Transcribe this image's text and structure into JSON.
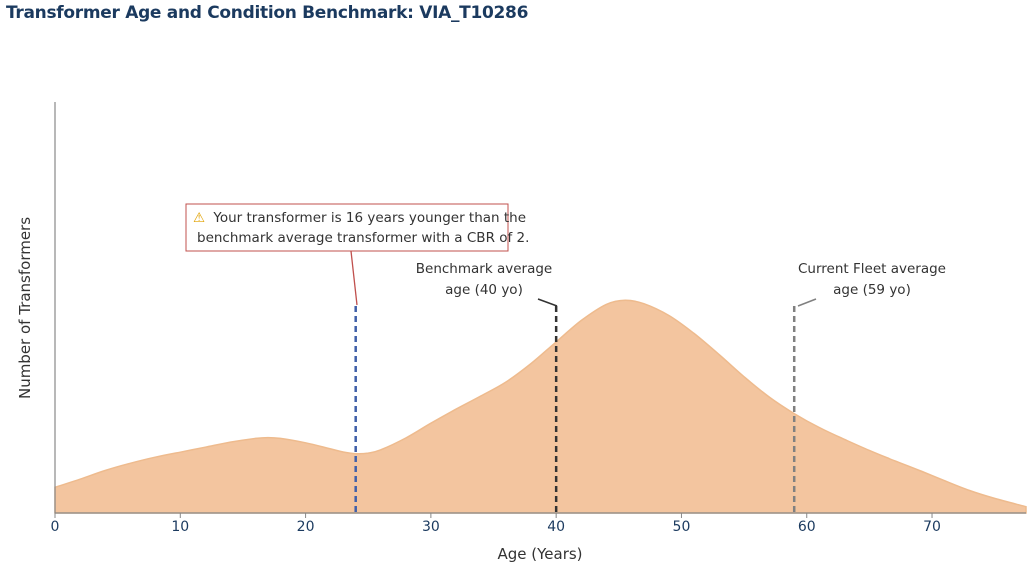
{
  "title": "Transformer Age and Condition Benchmark: VIA_T10286",
  "chart_data": {
    "type": "area",
    "xlabel": "Age (Years)",
    "ylabel": "Number of Transformers",
    "xlim": [
      0,
      77.5
    ],
    "ylim": [
      0,
      1
    ],
    "xticks": [
      0,
      10,
      20,
      30,
      40,
      50,
      60,
      70
    ],
    "colors": {
      "fill": "#f3c59f",
      "stroke": "#eebb8e",
      "axis": "#888888",
      "your_marker": "#3f5fa8",
      "benchmark_marker": "#333333",
      "fleet_marker": "#808080",
      "callout_border": "#c0504d"
    },
    "series": [
      {
        "x": [
          0,
          2,
          4,
          6,
          8,
          10,
          12,
          14,
          16,
          17,
          18,
          20,
          22,
          23,
          24,
          25,
          26,
          28,
          30,
          32,
          34,
          36,
          38,
          40,
          42,
          44,
          45.5,
          47,
          49,
          51,
          53,
          55,
          57,
          59,
          61,
          63,
          65,
          67,
          69,
          71,
          73,
          75,
          77.5
        ],
        "y": [
          0.118,
          0.155,
          0.195,
          0.228,
          0.256,
          0.279,
          0.302,
          0.325,
          0.342,
          0.346,
          0.342,
          0.322,
          0.294,
          0.28,
          0.272,
          0.275,
          0.29,
          0.344,
          0.412,
          0.476,
          0.537,
          0.601,
          0.686,
          0.785,
          0.883,
          0.957,
          0.976,
          0.96,
          0.906,
          0.824,
          0.727,
          0.625,
          0.532,
          0.456,
          0.392,
          0.338,
          0.287,
          0.24,
          0.195,
          0.148,
          0.103,
          0.067,
          0.029
        ]
      }
    ],
    "markers": [
      {
        "id": "your",
        "x": 24,
        "label": ""
      },
      {
        "id": "benchmark",
        "x": 40,
        "label_lines": [
          "Benchmark average",
          "age (40 yo)"
        ]
      },
      {
        "id": "fleet",
        "x": 59,
        "label_lines": [
          "Current Fleet average",
          "age (59 yo)"
        ]
      }
    ],
    "callout": {
      "icon": "warning-icon",
      "icon_glyph": "⚠",
      "lines": [
        "Your transformer is 16 years younger than the",
        "benchmark average transformer with a CBR of 2."
      ]
    }
  }
}
